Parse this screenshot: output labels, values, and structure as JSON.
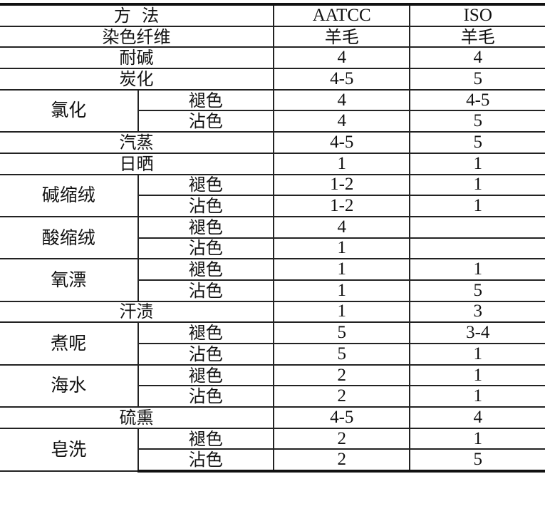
{
  "header": {
    "method": "方  法",
    "aatcc": "AATCC",
    "iso": "ISO"
  },
  "fiber": {
    "label": "染色纤维",
    "aatcc": "羊毛",
    "iso": "羊毛"
  },
  "rows": [
    {
      "test": "耐碱",
      "aatcc": "4",
      "iso": "4"
    },
    {
      "test": "炭化",
      "aatcc": "4-5",
      "iso": "5"
    },
    {
      "test": "氯化",
      "sub": [
        {
          "label": "褪色",
          "aatcc": "4",
          "iso": "4-5"
        },
        {
          "label": "沾色",
          "aatcc": "4",
          "iso": "5"
        }
      ]
    },
    {
      "test": "汽蒸",
      "aatcc": "4-5",
      "iso": "5"
    },
    {
      "test": "日晒",
      "aatcc": "1",
      "iso": "1"
    },
    {
      "test": "碱缩绒",
      "sub": [
        {
          "label": "褪色",
          "aatcc": "1-2",
          "iso": "1"
        },
        {
          "label": "沾色",
          "aatcc": "1-2",
          "iso": "1"
        }
      ]
    },
    {
      "test": "酸缩绒",
      "sub": [
        {
          "label": "褪色",
          "aatcc": "4",
          "iso": ""
        },
        {
          "label": "沾色",
          "aatcc": "1",
          "iso": ""
        }
      ]
    },
    {
      "test": "氧漂",
      "sub": [
        {
          "label": "褪色",
          "aatcc": "1",
          "iso": "1"
        },
        {
          "label": "沾色",
          "aatcc": "1",
          "iso": "5"
        }
      ]
    },
    {
      "test": "汗渍",
      "aatcc": "1",
      "iso": "3"
    },
    {
      "test": "煮呢",
      "sub": [
        {
          "label": "褪色",
          "aatcc": "5",
          "iso": "3-4"
        },
        {
          "label": "沾色",
          "aatcc": "5",
          "iso": "1"
        }
      ]
    },
    {
      "test": "海水",
      "sub": [
        {
          "label": "褪色",
          "aatcc": "2",
          "iso": "1"
        },
        {
          "label": "沾色",
          "aatcc": "2",
          "iso": "1"
        }
      ]
    },
    {
      "test": "硫熏",
      "aatcc": "4-5",
      "iso": "4"
    },
    {
      "test": "皂洗",
      "sub": [
        {
          "label": "褪色",
          "aatcc": "2",
          "iso": "1"
        },
        {
          "label": "沾色",
          "aatcc": "2",
          "iso": "5"
        }
      ]
    }
  ]
}
